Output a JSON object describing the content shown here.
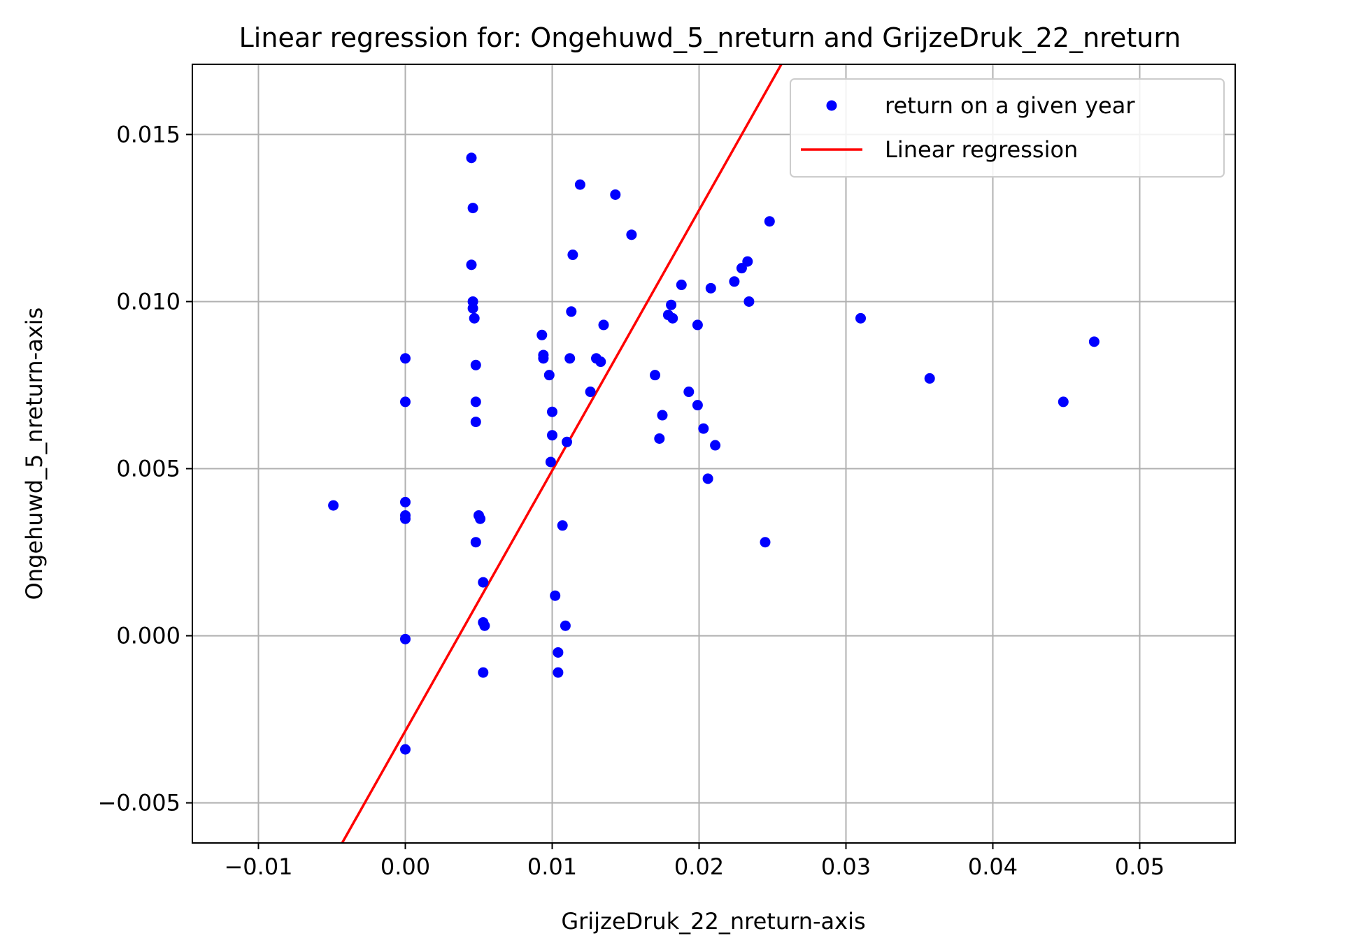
{
  "chart_data": {
    "type": "scatter",
    "title": "Linear regression for: Ongehuwd_5_nreturn and GrijzeDruk_22_nreturn",
    "xlabel": "GrijzeDruk_22_nreturn-axis",
    "ylabel": "Ongehuwd_5_nreturn-axis",
    "xlim": [
      -0.0145,
      0.0565
    ],
    "ylim": [
      -0.0062,
      0.0171
    ],
    "x_ticks": [
      -0.01,
      0.0,
      0.01,
      0.02,
      0.03,
      0.04,
      0.05
    ],
    "x_tick_labels": [
      "−0.01",
      "0.00",
      "0.01",
      "0.02",
      "0.03",
      "0.04",
      "0.05"
    ],
    "y_ticks": [
      -0.005,
      0.0,
      0.005,
      0.01,
      0.015
    ],
    "y_tick_labels": [
      "−0.005",
      "0.000",
      "0.005",
      "0.010",
      "0.015"
    ],
    "grid": true,
    "legend": {
      "placement": "upper-right",
      "entries": [
        "return on a given year",
        "Linear regression"
      ]
    },
    "series": [
      {
        "name": "return on a given year",
        "kind": "scatter",
        "color": "#0000ff",
        "points": [
          [
            -0.0049,
            0.0039
          ],
          [
            0.0,
            0.0083
          ],
          [
            0.0,
            0.007
          ],
          [
            0.0,
            0.004
          ],
          [
            0.0,
            0.0036
          ],
          [
            0.0,
            0.0035
          ],
          [
            0.0,
            -0.0001
          ],
          [
            0.0,
            -0.0034
          ],
          [
            0.0045,
            0.0143
          ],
          [
            0.0046,
            0.0128
          ],
          [
            0.0045,
            0.0111
          ],
          [
            0.0046,
            0.01
          ],
          [
            0.0046,
            0.0098
          ],
          [
            0.0047,
            0.0095
          ],
          [
            0.0048,
            0.0081
          ],
          [
            0.0048,
            0.007
          ],
          [
            0.0048,
            0.0064
          ],
          [
            0.0048,
            0.0028
          ],
          [
            0.005,
            0.0036
          ],
          [
            0.0051,
            0.0035
          ],
          [
            0.0053,
            0.0016
          ],
          [
            0.0053,
            0.0004
          ],
          [
            0.0054,
            0.0003
          ],
          [
            0.0053,
            -0.0011
          ],
          [
            0.0093,
            0.009
          ],
          [
            0.0094,
            0.0084
          ],
          [
            0.0094,
            0.0083
          ],
          [
            0.0098,
            0.0078
          ],
          [
            0.01,
            0.0067
          ],
          [
            0.01,
            0.006
          ],
          [
            0.0099,
            0.0052
          ],
          [
            0.0102,
            0.0012
          ],
          [
            0.0104,
            -0.0005
          ],
          [
            0.0104,
            -0.0011
          ],
          [
            0.0107,
            0.0033
          ],
          [
            0.0109,
            0.0003
          ],
          [
            0.011,
            0.0058
          ],
          [
            0.0112,
            0.0083
          ],
          [
            0.0113,
            0.0097
          ],
          [
            0.0114,
            0.0114
          ],
          [
            0.0119,
            0.0135
          ],
          [
            0.0126,
            0.0073
          ],
          [
            0.013,
            0.0083
          ],
          [
            0.0133,
            0.0082
          ],
          [
            0.0135,
            0.0093
          ],
          [
            0.0143,
            0.0132
          ],
          [
            0.0154,
            0.012
          ],
          [
            0.017,
            0.0078
          ],
          [
            0.0173,
            0.0059
          ],
          [
            0.0175,
            0.0066
          ],
          [
            0.0179,
            0.0096
          ],
          [
            0.0181,
            0.0099
          ],
          [
            0.0182,
            0.0095
          ],
          [
            0.0188,
            0.0105
          ],
          [
            0.0193,
            0.0073
          ],
          [
            0.0199,
            0.0069
          ],
          [
            0.0199,
            0.0093
          ],
          [
            0.0203,
            0.0062
          ],
          [
            0.0206,
            0.0047
          ],
          [
            0.0208,
            0.0104
          ],
          [
            0.0211,
            0.0057
          ],
          [
            0.0224,
            0.0106
          ],
          [
            0.0229,
            0.011
          ],
          [
            0.0233,
            0.0112
          ],
          [
            0.0234,
            0.01
          ],
          [
            0.0245,
            0.0028
          ],
          [
            0.0248,
            0.0124
          ],
          [
            0.031,
            0.0095
          ],
          [
            0.0357,
            0.0077
          ],
          [
            0.0448,
            0.007
          ],
          [
            0.0469,
            0.0088
          ]
        ]
      },
      {
        "name": "Linear regression",
        "kind": "line",
        "color": "#ff0000",
        "points": [
          [
            -0.0043,
            -0.0062
          ],
          [
            0.0256,
            0.0171
          ]
        ]
      }
    ]
  }
}
